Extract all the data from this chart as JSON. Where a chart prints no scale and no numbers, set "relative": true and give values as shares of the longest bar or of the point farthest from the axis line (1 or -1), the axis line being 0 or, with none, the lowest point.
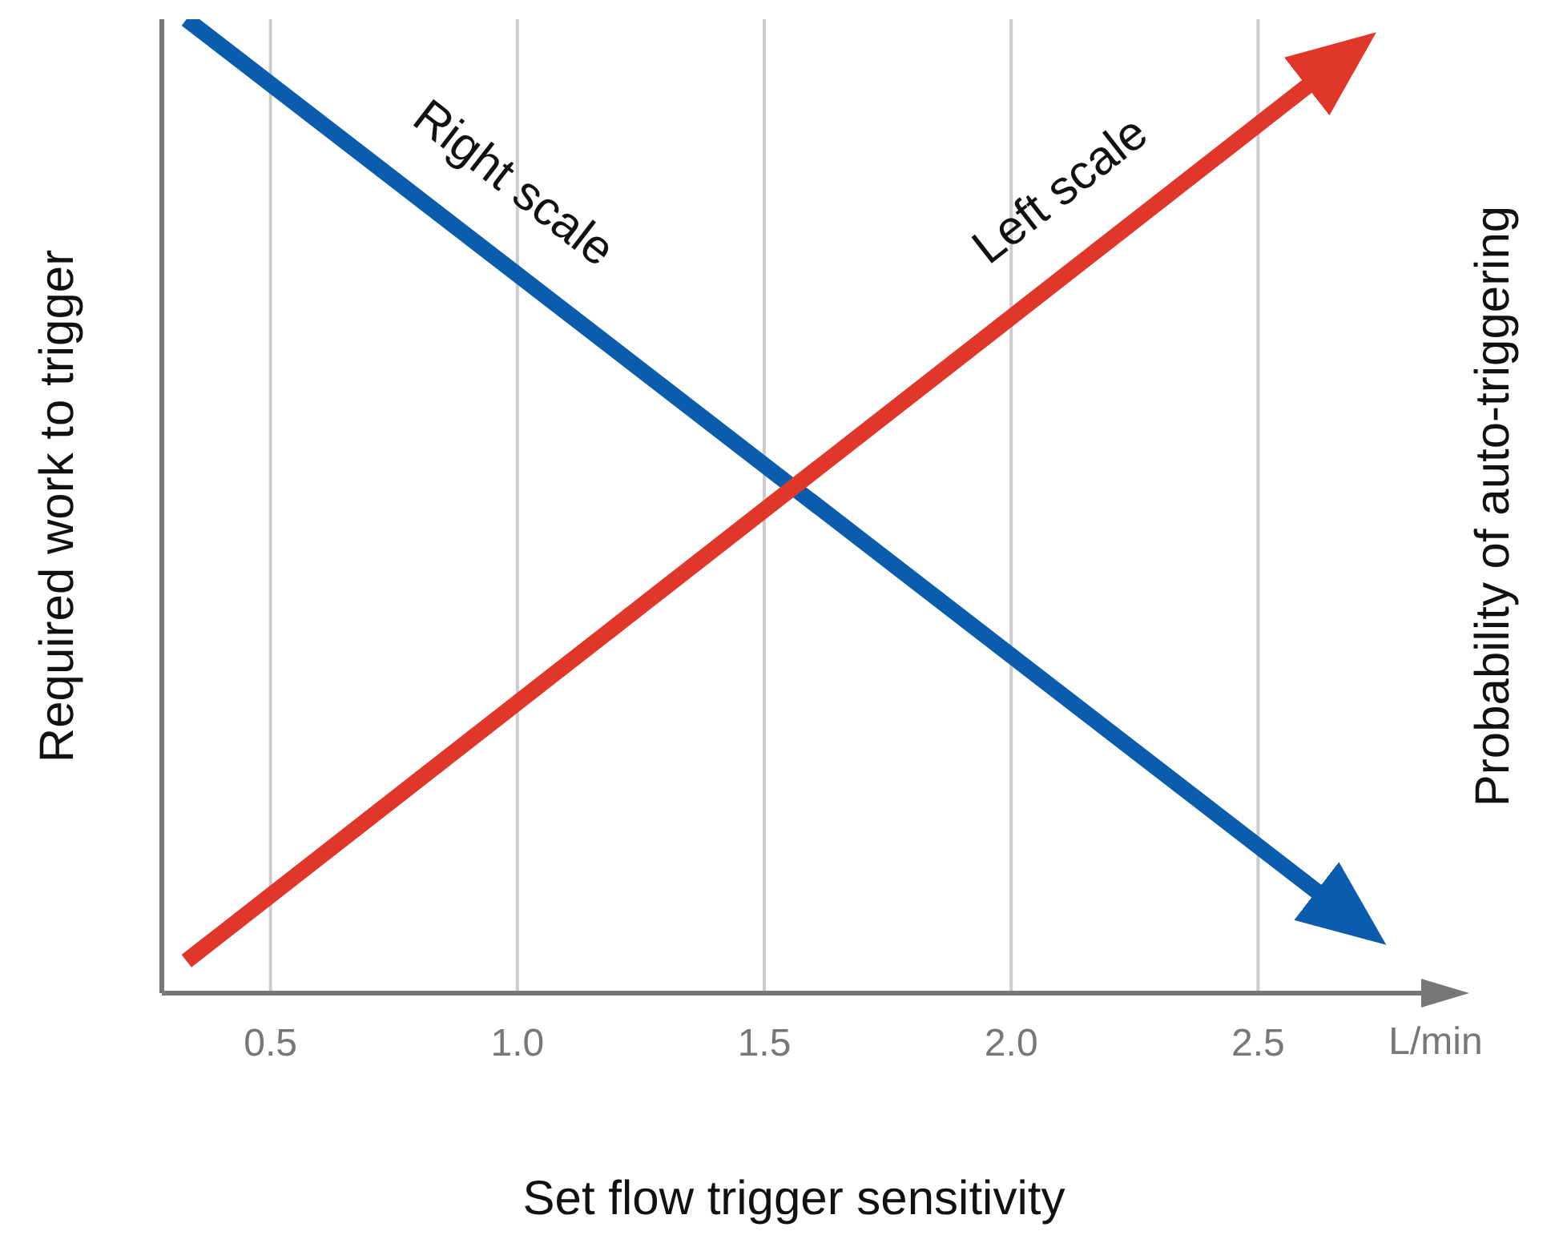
{
  "chart_data": {
    "type": "line",
    "relative": true,
    "xlabel": "Set flow trigger sensitivity",
    "ylabel": "Required work to trigger",
    "y2label": "Probability of auto-triggering",
    "xlim": [
      0.28,
      2.84
    ],
    "xticks": [
      0.5,
      {
        "value": 1,
        "label": "1.0"
      },
      1.5,
      {
        "value": 2,
        "label": "2.0"
      },
      2.5
    ],
    "grid": "x",
    "legend": false,
    "marker": "none",
    "line_style": "solid",
    "annotations": [
      "L/min"
    ],
    "series": [
      {
        "name": "Right scale",
        "color": "#0a5cad",
        "axis": "y2",
        "x": [
          0.33,
          2.73
        ],
        "values": [
          1.0,
          0.061
        ]
      },
      {
        "name": "Left scale",
        "color": "#e0372a",
        "x": [
          0.33,
          2.71
        ],
        "values": [
          0.033,
          0.975
        ]
      }
    ]
  }
}
